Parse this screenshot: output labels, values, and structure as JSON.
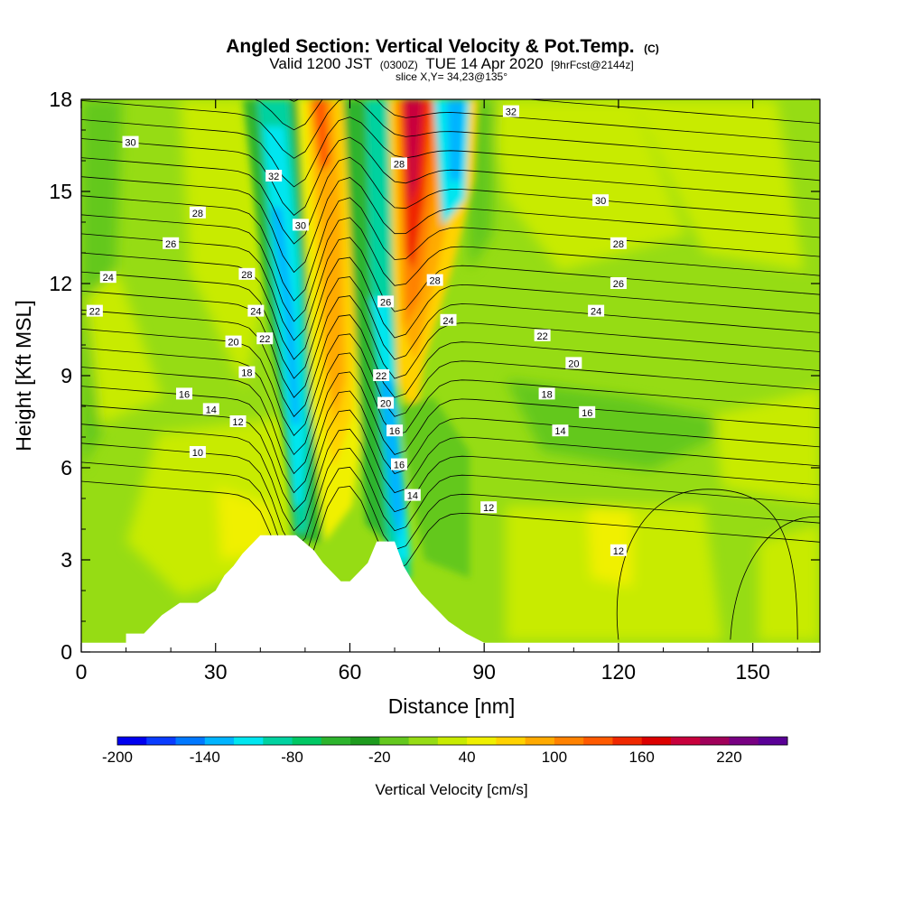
{
  "chart_data": {
    "type": "contour",
    "title": "Angled Section: Vertical Velocity & Pot.Temp.",
    "title_suffix": "(C)",
    "subtitle_parts": [
      "Valid 1200 JST",
      "(0300Z)",
      "TUE 14 Apr 2020",
      "[9hrFcst@2144z]"
    ],
    "slice_label": "slice X,Y= 34,23@135°",
    "xlabel": "Distance [nm]",
    "ylabel": "Height [Kft MSL]",
    "xlim": [
      0,
      165
    ],
    "ylim": [
      0,
      18
    ],
    "xticks": [
      "0",
      "30",
      "60",
      "90",
      "120",
      "150"
    ],
    "yticks": [
      "0",
      "3",
      "6",
      "9",
      "12",
      "15",
      "18"
    ],
    "colorbar": {
      "label": "Vertical Velocity [cm/s]",
      "tick_labels": [
        "-200",
        "-140",
        "-80",
        "-20",
        "40",
        "100",
        "160",
        "220"
      ],
      "colors": [
        "#0000f0",
        "#0a3cff",
        "#0078ff",
        "#00b4ff",
        "#00e6f0",
        "#00d2a0",
        "#00c864",
        "#2db42d",
        "#1e9b1e",
        "#64c81e",
        "#96dc14",
        "#c8eb00",
        "#f0f000",
        "#ffd200",
        "#ffaa00",
        "#ff8200",
        "#ff5a00",
        "#f02800",
        "#dc0000",
        "#c8003c",
        "#a0005a",
        "#780082",
        "#5a0096"
      ]
    },
    "terrain_profile": {
      "x": [
        0,
        10,
        10,
        14,
        16,
        18,
        22,
        26,
        30,
        32,
        34,
        36,
        38,
        40,
        42,
        44,
        48,
        52,
        54,
        56,
        58,
        60,
        62,
        64,
        66,
        70,
        72,
        74,
        76,
        78,
        80,
        82,
        84,
        86,
        90,
        165
      ],
      "z": [
        0.3,
        0.3,
        0.6,
        0.6,
        0.9,
        1.2,
        1.6,
        1.6,
        2.0,
        2.5,
        2.8,
        3.2,
        3.5,
        3.8,
        3.8,
        3.8,
        3.8,
        3.3,
        2.9,
        2.6,
        2.3,
        2.3,
        2.6,
        2.9,
        3.6,
        3.6,
        2.8,
        2.3,
        1.9,
        1.6,
        1.3,
        1.0,
        0.8,
        0.6,
        0.3,
        0.3
      ]
    },
    "velocity_features": [
      {
        "name": "updraft-west",
        "x": 58,
        "z": 12,
        "sign": "+",
        "peak": 100
      },
      {
        "name": "downdraft-west",
        "x": 46,
        "z": 11,
        "sign": "-",
        "peak": -140
      },
      {
        "name": "updraft-east",
        "x": 73,
        "z": 16,
        "sign": "+",
        "peak": 180
      },
      {
        "name": "downdraft-east",
        "x": 69,
        "z": 6,
        "sign": "-",
        "peak": -110
      },
      {
        "name": "weak-updraft-1",
        "x": 32,
        "z": 5,
        "sign": "+",
        "peak": 40
      },
      {
        "name": "weak-updraft-2",
        "x": 119,
        "z": 3,
        "sign": "+",
        "peak": 40
      }
    ],
    "potential_temperature_labels": [
      {
        "text": "30",
        "x": 11,
        "z": 16.6
      },
      {
        "text": "28",
        "x": 26,
        "z": 14.3
      },
      {
        "text": "26",
        "x": 20,
        "z": 13.3
      },
      {
        "text": "24",
        "x": 6,
        "z": 12.2
      },
      {
        "text": "22",
        "x": 3,
        "z": 11.1
      },
      {
        "text": "32",
        "x": 43,
        "z": 15.5
      },
      {
        "text": "30",
        "x": 49,
        "z": 13.9
      },
      {
        "text": "28",
        "x": 37,
        "z": 12.3
      },
      {
        "text": "24",
        "x": 39,
        "z": 11.1
      },
      {
        "text": "22",
        "x": 41,
        "z": 10.2
      },
      {
        "text": "20",
        "x": 34,
        "z": 10.1
      },
      {
        "text": "18",
        "x": 37,
        "z": 9.1
      },
      {
        "text": "16",
        "x": 23,
        "z": 8.4
      },
      {
        "text": "14",
        "x": 29,
        "z": 7.9
      },
      {
        "text": "12",
        "x": 35,
        "z": 7.5
      },
      {
        "text": "10",
        "x": 26,
        "z": 6.5
      },
      {
        "text": "32",
        "x": 96,
        "z": 17.6
      },
      {
        "text": "28",
        "x": 71,
        "z": 15.9
      },
      {
        "text": "26",
        "x": 68,
        "z": 11.4
      },
      {
        "text": "28",
        "x": 79,
        "z": 12.1
      },
      {
        "text": "24",
        "x": 82,
        "z": 10.8
      },
      {
        "text": "22",
        "x": 67,
        "z": 9.0
      },
      {
        "text": "20",
        "x": 68,
        "z": 8.1
      },
      {
        "text": "16",
        "x": 70,
        "z": 7.2
      },
      {
        "text": "16",
        "x": 71,
        "z": 6.1
      },
      {
        "text": "14",
        "x": 74,
        "z": 5.1
      },
      {
        "text": "30",
        "x": 116,
        "z": 14.7
      },
      {
        "text": "28",
        "x": 120,
        "z": 13.3
      },
      {
        "text": "26",
        "x": 120,
        "z": 12.0
      },
      {
        "text": "24",
        "x": 115,
        "z": 11.1
      },
      {
        "text": "22",
        "x": 103,
        "z": 10.3
      },
      {
        "text": "20",
        "x": 110,
        "z": 9.4
      },
      {
        "text": "18",
        "x": 104,
        "z": 8.4
      },
      {
        "text": "16",
        "x": 113,
        "z": 7.8
      },
      {
        "text": "14",
        "x": 107,
        "z": 7.2
      },
      {
        "text": "12",
        "x": 91,
        "z": 4.7
      },
      {
        "text": "12",
        "x": 120,
        "z": 3.3
      }
    ]
  }
}
